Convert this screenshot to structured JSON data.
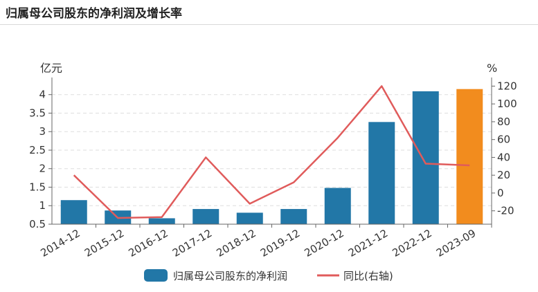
{
  "title": "归属母公司股东的净利润及增长率",
  "chart_data": {
    "type": "bar",
    "categories": [
      "2014-12",
      "2015-12",
      "2016-12",
      "2017-12",
      "2018-12",
      "2019-12",
      "2020-12",
      "2021-12",
      "2022-12",
      "2023-09"
    ],
    "series": [
      {
        "name": "归属母公司股东的净利润",
        "type": "bar",
        "axis": "left",
        "values": [
          1.15,
          0.87,
          0.66,
          0.91,
          0.81,
          0.91,
          1.48,
          3.26,
          4.09,
          4.15
        ],
        "color": "#2277a7",
        "highlight_last_color": "#f28c1e"
      },
      {
        "name": "同比(右轴)",
        "type": "line",
        "axis": "right",
        "values": [
          20,
          -28,
          -27,
          40,
          -12,
          12,
          62,
          120,
          33,
          31
        ],
        "color": "#e05b5b"
      }
    ],
    "left_axis": {
      "unit": "亿元",
      "min": 0.5,
      "max": 4.35,
      "ticks": [
        0.5,
        1,
        1.5,
        2,
        2.5,
        3,
        3.5,
        4
      ]
    },
    "right_axis": {
      "unit": "%",
      "min": -35,
      "max": 125,
      "ticks": [
        -20,
        0,
        20,
        40,
        60,
        80,
        100,
        120
      ]
    },
    "grid": true,
    "legend_position": "bottom"
  }
}
